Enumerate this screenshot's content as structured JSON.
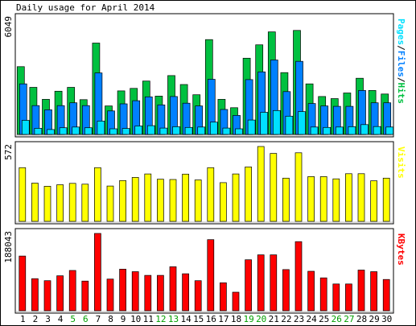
{
  "chart_data": [
    {
      "type": "bar",
      "title": "Daily usage for April 2014",
      "panel": "pages-files-hits",
      "ylabel": "Pages/Files/Hits",
      "ymax_label": "6049",
      "ylim": [
        0,
        6049
      ],
      "categories": [
        "1",
        "2",
        "3",
        "4",
        "5",
        "6",
        "7",
        "8",
        "9",
        "10",
        "11",
        "12",
        "13",
        "14",
        "15",
        "16",
        "17",
        "18",
        "19",
        "20",
        "21",
        "22",
        "23",
        "24",
        "25",
        "26",
        "27",
        "28",
        "29",
        "30"
      ],
      "weekend_days": [
        "5",
        "6",
        "12",
        "13",
        "19",
        "20",
        "26",
        "27"
      ],
      "series": [
        {
          "name": "Hits",
          "color": "#00c040",
          "values": [
            3860,
            2680,
            2000,
            2460,
            2680,
            1980,
            5200,
            1620,
            2480,
            2620,
            3040,
            2180,
            3350,
            2840,
            2260,
            5400,
            2000,
            1520,
            4340,
            5100,
            5840,
            3520,
            5920,
            2880,
            2160,
            2040,
            2360,
            3200,
            2500,
            2300
          ]
        },
        {
          "name": "Files",
          "color": "#0080ff",
          "values": [
            2880,
            1640,
            1400,
            1640,
            1800,
            1640,
            3500,
            1340,
            1740,
            1920,
            2140,
            1680,
            2160,
            1780,
            1620,
            3140,
            1420,
            1080,
            3120,
            3560,
            4240,
            2440,
            4160,
            1760,
            1620,
            1600,
            1600,
            2500,
            1800,
            1800
          ]
        },
        {
          "name": "Pages",
          "color": "#00e0ff",
          "values": [
            800,
            350,
            280,
            380,
            420,
            380,
            760,
            320,
            340,
            480,
            500,
            360,
            440,
            400,
            420,
            700,
            360,
            320,
            820,
            1260,
            1360,
            1040,
            1300,
            420,
            400,
            420,
            440,
            560,
            450,
            420
          ]
        }
      ],
      "legend": [
        "Pages",
        "/",
        "Files",
        "/",
        "Hits"
      ],
      "legend_colors": [
        "#00e0ff",
        "#000000",
        "#0080ff",
        "#000000",
        "#00c040"
      ]
    },
    {
      "type": "bar",
      "panel": "visits",
      "ylabel": "Visits",
      "ymax_label": "572",
      "ylim": [
        0,
        572
      ],
      "series": [
        {
          "name": "Visits",
          "color": "#ffff00",
          "values": [
            410,
            292,
            268,
            280,
            290,
            284,
            410,
            270,
            312,
            336,
            362,
            322,
            320,
            361,
            317,
            410,
            296,
            362,
            416,
            572,
            519,
            330,
            524,
            342,
            342,
            325,
            364,
            364,
            310,
            330
          ]
        }
      ]
    },
    {
      "type": "bar",
      "panel": "kbytes",
      "ylabel": "KBytes",
      "ymax_label": "188043",
      "ylim": [
        0,
        188043
      ],
      "series": [
        {
          "name": "KBytes",
          "color": "#ff0000",
          "values": [
            133000,
            78000,
            73000,
            85000,
            98000,
            72000,
            188043,
            77000,
            101000,
            95000,
            86000,
            86000,
            107000,
            90000,
            73000,
            173000,
            68000,
            45000,
            124000,
            136000,
            136000,
            100000,
            168000,
            96000,
            80000,
            65000,
            65000,
            99000,
            95000,
            76000
          ]
        }
      ]
    }
  ]
}
